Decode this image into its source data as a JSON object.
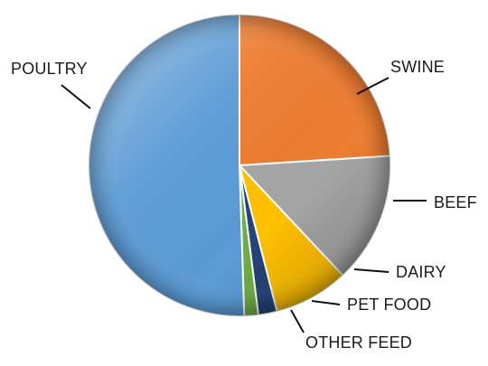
{
  "chart_data": {
    "type": "pie",
    "title": "",
    "legend": "none",
    "series": [
      {
        "name": "SWINE",
        "value": 24.0,
        "color": "#ED7D31"
      },
      {
        "name": "BEEF",
        "value": 14.0,
        "color": "#A5A5A5"
      },
      {
        "name": "DAIRY",
        "value": 8.0,
        "color": "#FFC000"
      },
      {
        "name": "PET FOOD",
        "value": 2.0,
        "color": "#264478"
      },
      {
        "name": "OTHER FEED",
        "value": 1.5,
        "color": "#70AD47"
      },
      {
        "name": "POULTRY",
        "value": 50.5,
        "color": "#5B9BD5"
      }
    ]
  }
}
